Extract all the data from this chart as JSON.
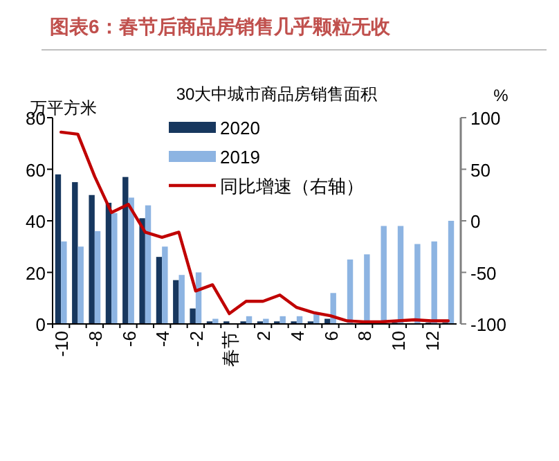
{
  "chart_data": {
    "type": "bar",
    "title": "图表6：春节后商品房销售几乎颗粒无收",
    "subtitle": "30大中城市商品房销售面积",
    "ylabel": "万平方米",
    "y2label": "%",
    "categories": [
      "-10",
      null,
      "-8",
      null,
      "-6",
      null,
      "-4",
      null,
      "-2",
      null,
      "春节",
      null,
      "2",
      null,
      "4",
      null,
      "6",
      null,
      "8",
      null,
      "10",
      null,
      "12",
      null
    ],
    "series": [
      {
        "name": "2020",
        "color": "#17375e",
        "values": [
          58,
          55,
          50,
          47,
          57,
          41,
          26,
          17,
          6,
          1,
          1,
          1,
          1,
          1,
          1,
          1,
          2,
          null,
          null,
          0.5,
          0.5,
          null,
          0.5,
          0.5
        ]
      },
      {
        "name": "2019",
        "color": "#8db4e2",
        "values": [
          32,
          30,
          36,
          43,
          49,
          46,
          30,
          19,
          20,
          2,
          null,
          3,
          2,
          3,
          3,
          4,
          12,
          25,
          27,
          38,
          38,
          31,
          32,
          40
        ]
      },
      {
        "name": "同比增速（右轴）",
        "type": "line",
        "axis": "y2",
        "color": "#c00000",
        "values": [
          86,
          84,
          43,
          8,
          16,
          -11,
          -16,
          -11,
          -68,
          -62,
          -90,
          -78,
          -78,
          -72,
          -84,
          -89,
          -92,
          -97,
          -98,
          -98,
          -97,
          -96,
          -97,
          -97
        ]
      }
    ],
    "ylim": [
      0,
      80
    ],
    "yticks": [
      0,
      20,
      40,
      60,
      80
    ],
    "y2lim": [
      -100,
      100
    ],
    "y2ticks": [
      -100,
      -50,
      0,
      50,
      100
    ],
    "legend": "top",
    "grid": false
  }
}
